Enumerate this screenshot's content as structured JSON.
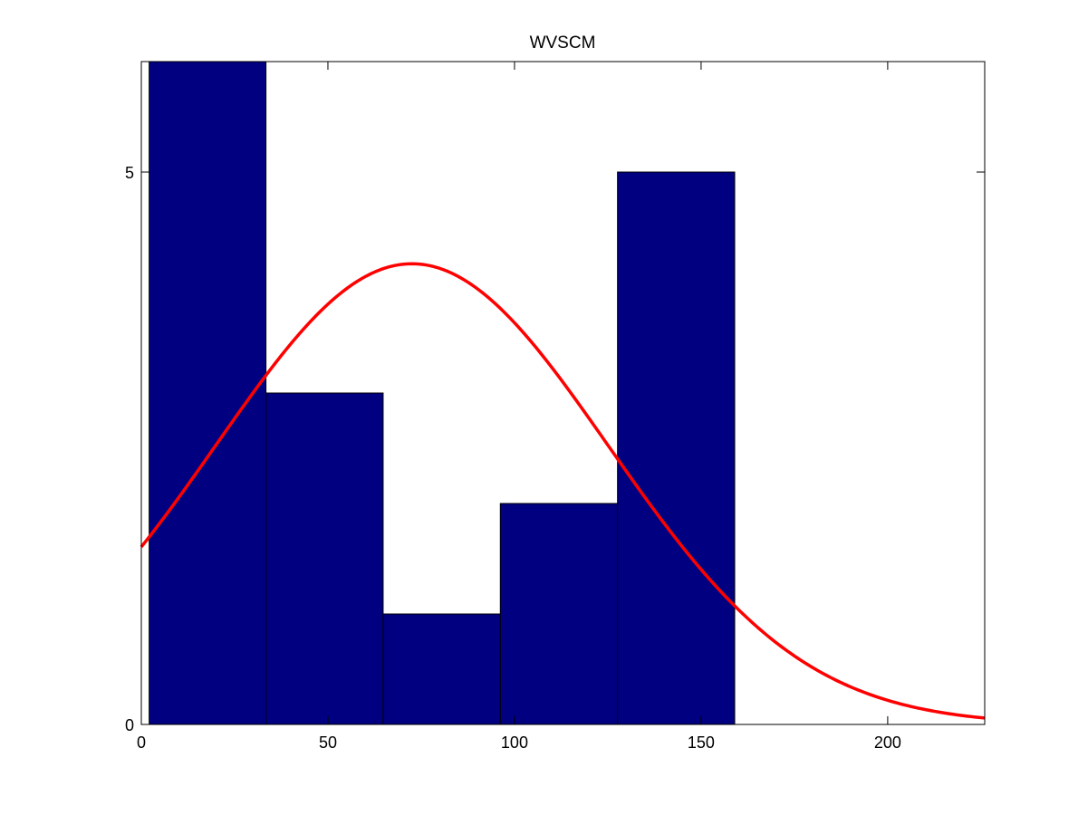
{
  "chart_data": {
    "type": "bar",
    "title": "WVSCM",
    "xlabel": "",
    "ylabel": "",
    "xlim": [
      0,
      226
    ],
    "ylim": [
      0,
      6
    ],
    "x_ticks": [
      0,
      50,
      100,
      150,
      200
    ],
    "x_tick_labels": [
      "0",
      "50",
      "100",
      "150",
      "200"
    ],
    "y_ticks": [
      0,
      5
    ],
    "y_tick_labels": [
      "0",
      "5"
    ],
    "grid": false,
    "bins": [
      {
        "x0": 2.1,
        "x1": 33.4,
        "value": 6
      },
      {
        "x0": 33.4,
        "x1": 64.8,
        "value": 3
      },
      {
        "x0": 64.8,
        "x1": 96.2,
        "value": 1
      },
      {
        "x0": 96.2,
        "x1": 127.6,
        "value": 2
      },
      {
        "x0": 127.6,
        "x1": 159.0,
        "value": 5
      }
    ],
    "bar_color": "#000080",
    "fit_curve": {
      "type": "normal",
      "color": "#ff0000",
      "mean": 72.5,
      "sd": 52.5,
      "peak": 4.17,
      "x_range": [
        0,
        226
      ]
    }
  }
}
